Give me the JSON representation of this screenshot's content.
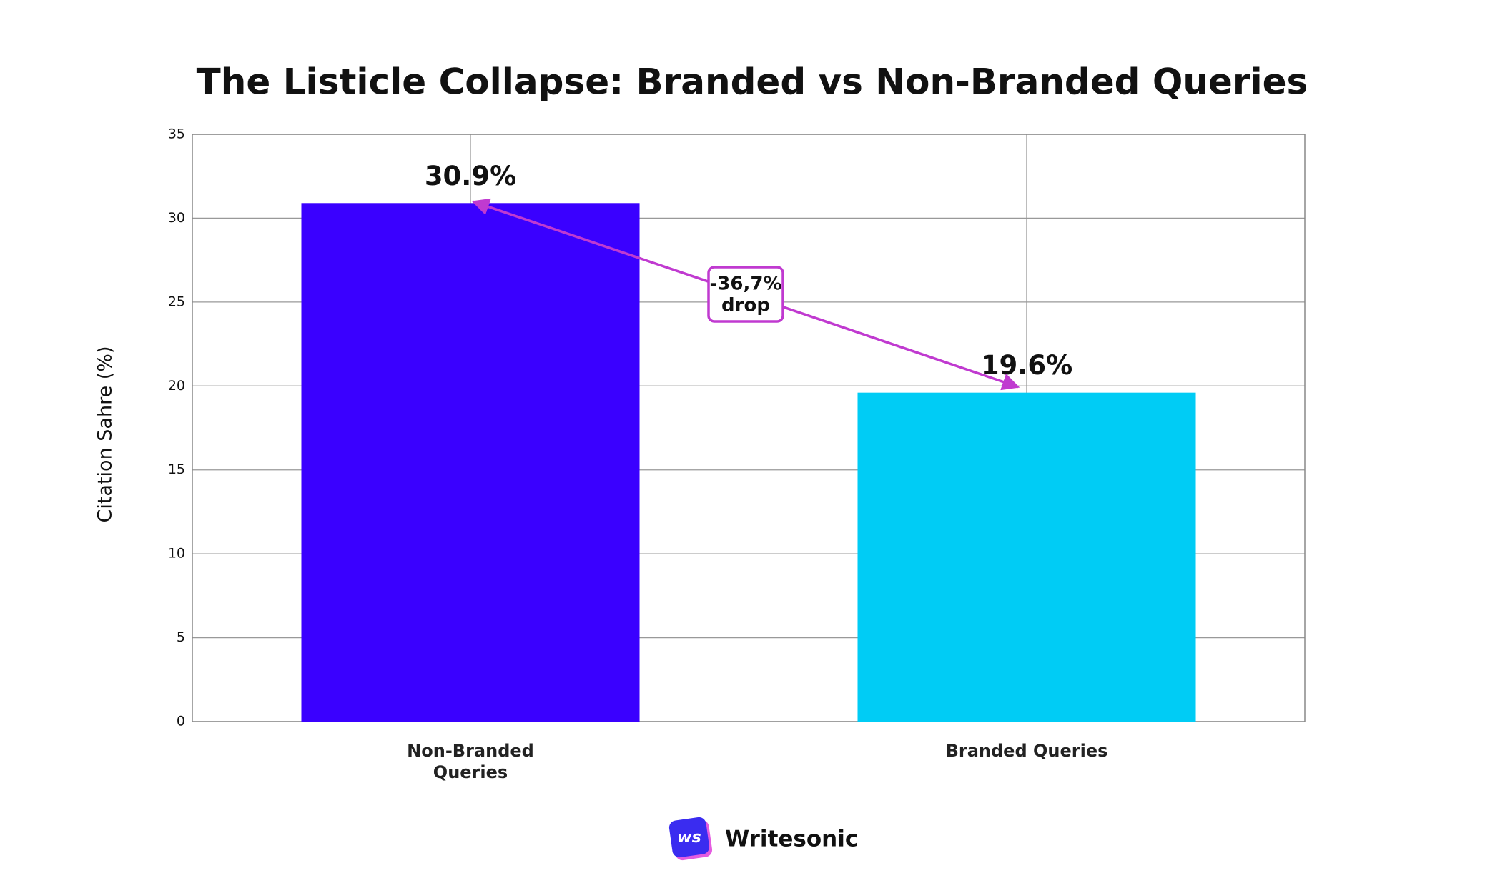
{
  "chart_data": {
    "type": "bar",
    "title": "The Listicle Collapse: Branded vs Non-Branded Queries",
    "y_label": "Citation Sahre (%)",
    "categories": [
      "Non-Branded Queries",
      "Branded Queries"
    ],
    "values": [
      30.9,
      19.6
    ],
    "value_labels": [
      "30.9%",
      "19.6%"
    ],
    "colors": [
      "#3a00ff",
      "#00ccf5"
    ],
    "ylim": [
      0,
      35
    ],
    "yticks": [
      0,
      5,
      10,
      15,
      20,
      25,
      30,
      35
    ],
    "grid": true,
    "annotation": [
      "-36,7%",
      "drop"
    ],
    "annotation_color": "#c03ad0"
  },
  "logo": {
    "icon": "ws",
    "name": "Writesonic"
  }
}
